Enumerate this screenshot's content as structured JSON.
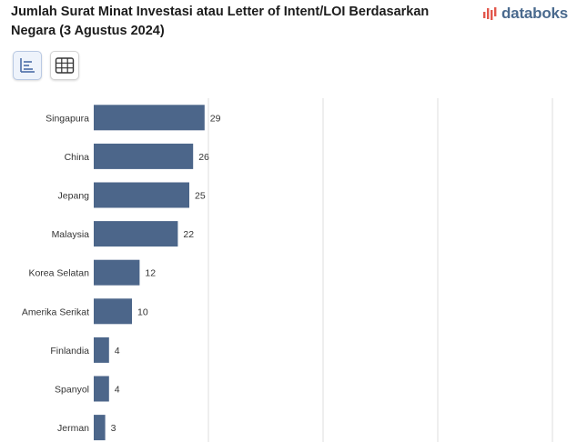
{
  "header": {
    "title": "Jumlah Surat Minat Investasi atau Letter of Intent/LOI Berdasarkan Negara (3 Agustus 2024)",
    "brand": "databoks"
  },
  "toolbar": {
    "chart_view_icon": "bar-chart-icon",
    "table_view_icon": "table-grid-icon"
  },
  "colors": {
    "bar": "#4c668a",
    "grid": "#dcdcdc",
    "logo": "#4a6a8e",
    "logo_accent": "#e2574c"
  },
  "chart_data": {
    "type": "bar",
    "orientation": "horizontal",
    "categories": [
      "Singapura",
      "China",
      "Jepang",
      "Malaysia",
      "Korea Selatan",
      "Amerika Serikat",
      "Finlandia",
      "Spanyol",
      "Jerman"
    ],
    "values": [
      29,
      26,
      25,
      22,
      12,
      10,
      4,
      4,
      3
    ],
    "xlim": [
      0,
      120
    ],
    "grid": true,
    "title": "Jumlah Surat Minat Investasi atau Letter of Intent/LOI Berdasarkan Negara (3 Agustus 2024)"
  }
}
